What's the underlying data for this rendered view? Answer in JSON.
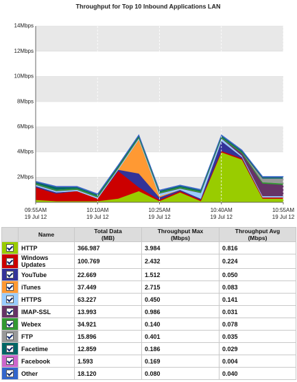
{
  "chart_data": {
    "type": "stacked_area",
    "title": "Throughput for Top 10 Inbound Applications LAN",
    "categories": [
      "09:55AM",
      null,
      null,
      "10:10AM",
      null,
      null,
      "10:25AM",
      null,
      null,
      "10:40AM",
      null,
      null,
      "10:55AM"
    ],
    "category_dates": [
      "19 Jul 12",
      null,
      null,
      "19 Jul 12",
      null,
      null,
      "19 Jul 12",
      null,
      null,
      "19 Jul 12",
      null,
      null,
      "19 Jul 12"
    ],
    "ylim": [
      0,
      14
    ],
    "yticks": [
      {
        "value": 2,
        "label": "2Mbps"
      },
      {
        "value": 4,
        "label": "4Mbps"
      },
      {
        "value": 6,
        "label": "6Mbps"
      },
      {
        "value": 8,
        "label": "8Mbps"
      },
      {
        "value": 10,
        "label": "10Mbps"
      },
      {
        "value": 12,
        "label": "12Mbps"
      },
      {
        "value": 14,
        "label": "14Mbps"
      }
    ],
    "grid": true,
    "series": [
      {
        "name": "HTTP",
        "color": "#99cc00",
        "values": [
          0.2,
          0.1,
          0.1,
          0.1,
          0.3,
          0.9,
          0.1,
          0.8,
          0.1,
          3.984,
          3.4,
          0.3,
          0.3
        ]
      },
      {
        "name": "Windows Updates",
        "color": "#cc0000",
        "values": [
          1.0,
          0.6,
          0.8,
          0.2,
          2.2,
          0.3,
          0.1,
          0.1,
          0.1,
          0.1,
          0.1,
          0.1,
          0.1
        ]
      },
      {
        "name": "YouTube",
        "color": "#333399",
        "values": [
          0.1,
          0.1,
          0.0,
          0.0,
          0.1,
          1.1,
          0.2,
          0.1,
          0.1,
          0.8,
          0.1,
          0.0,
          0.0
        ]
      },
      {
        "name": "iTunes",
        "color": "#ff9933",
        "values": [
          0,
          0,
          0,
          0,
          0,
          2.7,
          0.1,
          0,
          0,
          0,
          0,
          0,
          0
        ]
      },
      {
        "name": "HTTPS",
        "color": "#99ccff",
        "values": [
          0.1,
          0.1,
          0.1,
          0.1,
          0.1,
          0.1,
          0.2,
          0.1,
          0.45,
          0.2,
          0.1,
          0.1,
          0.1
        ]
      },
      {
        "name": "IMAP-SSL",
        "color": "#663366",
        "values": [
          0.02,
          0.02,
          0.02,
          0.02,
          0.02,
          0.02,
          0.02,
          0.02,
          0.02,
          0.02,
          0.2,
          1.0,
          0.9
        ]
      },
      {
        "name": "Webex",
        "color": "#339933",
        "values": [
          0.1,
          0.1,
          0.1,
          0.1,
          0.1,
          0.1,
          0.1,
          0.1,
          0.1,
          0.1,
          0.1,
          0.1,
          0.1
        ]
      },
      {
        "name": "FTP",
        "color": "#999999",
        "values": [
          0,
          0,
          0,
          0,
          0,
          0,
          0,
          0,
          0,
          0,
          0,
          0.3,
          0.4
        ]
      },
      {
        "name": "Facetime",
        "color": "#006666",
        "values": [
          0.1,
          0.2,
          0.1,
          0.1,
          0.1,
          0.1,
          0.1,
          0.1,
          0.1,
          0.1,
          0.1,
          0.1,
          0.1
        ]
      },
      {
        "name": "Facebook",
        "color": "#cc66cc",
        "values": [
          0.01,
          0.01,
          0.01,
          0.01,
          0.01,
          0.01,
          0.01,
          0.01,
          0.01,
          0.01,
          0.01,
          0.01,
          0.01
        ]
      },
      {
        "name": "Other",
        "color": "#3366cc",
        "values": [
          0.05,
          0.05,
          0.05,
          0.05,
          0.05,
          0.05,
          0.05,
          0.05,
          0.05,
          0.05,
          0.05,
          0.05,
          0.05
        ]
      }
    ]
  },
  "table": {
    "columns": [
      "Name",
      "Total Data\n(MB)",
      "Throughput Max\n(Mbps)",
      "Throughput Avg\n(Mbps)"
    ],
    "rows": [
      [
        "HTTP",
        "366.987",
        "3.984",
        "0.816"
      ],
      [
        "Windows\nUpdates",
        "100.769",
        "2.432",
        "0.224"
      ],
      [
        "YouTube",
        "22.669",
        "1.512",
        "0.050"
      ],
      [
        "iTunes",
        "37.449",
        "2.715",
        "0.083"
      ],
      [
        "HTTPS",
        "63.227",
        "0.450",
        "0.141"
      ],
      [
        "IMAP-SSL",
        "13.993",
        "0.986",
        "0.031"
      ],
      [
        "Webex",
        "34.921",
        "0.140",
        "0.078"
      ],
      [
        "FTP",
        "15.896",
        "0.401",
        "0.035"
      ],
      [
        "Facetime",
        "12.859",
        "0.186",
        "0.029"
      ],
      [
        "Facebook",
        "1.593",
        "0.169",
        "0.004"
      ],
      [
        "Other",
        "18.120",
        "0.080",
        "0.040"
      ]
    ]
  }
}
